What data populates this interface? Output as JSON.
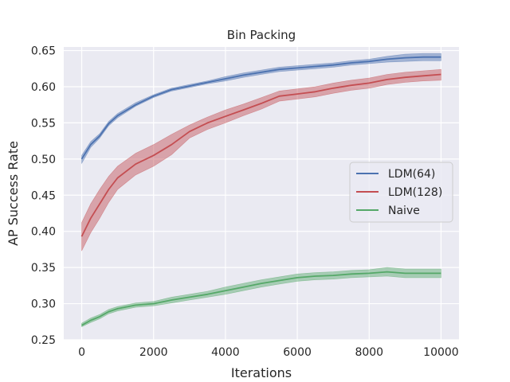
{
  "chart_data": {
    "type": "line",
    "title": "Bin Packing",
    "xlabel": "Iterations",
    "ylabel": "AP Success Rate",
    "xlim": [
      -500,
      10500
    ],
    "ylim": [
      0.25,
      0.655
    ],
    "xticks": [
      0,
      2000,
      4000,
      6000,
      8000,
      10000
    ],
    "yticks": [
      0.25,
      0.3,
      0.35,
      0.4,
      0.45,
      0.5,
      0.55,
      0.6,
      0.65
    ],
    "grid": true,
    "legend_position": "center-right",
    "x": [
      0,
      250,
      500,
      750,
      1000,
      1500,
      2000,
      2500,
      3000,
      3500,
      4000,
      4500,
      5000,
      5500,
      6000,
      6500,
      7000,
      7500,
      8000,
      8500,
      9000,
      9500,
      10000
    ],
    "series": [
      {
        "name": "LDM(64)",
        "color": "#4c72b0",
        "values": [
          0.5,
          0.52,
          0.532,
          0.549,
          0.56,
          0.575,
          0.587,
          0.596,
          0.601,
          0.606,
          0.611,
          0.616,
          0.62,
          0.624,
          0.626,
          0.628,
          0.63,
          0.633,
          0.635,
          0.638,
          0.64,
          0.641,
          0.641
        ],
        "lower": [
          0.494,
          0.516,
          0.529,
          0.546,
          0.557,
          0.573,
          0.585,
          0.594,
          0.599,
          0.604,
          0.608,
          0.613,
          0.617,
          0.621,
          0.623,
          0.625,
          0.627,
          0.63,
          0.632,
          0.634,
          0.635,
          0.636,
          0.636
        ],
        "upper": [
          0.505,
          0.524,
          0.535,
          0.552,
          0.563,
          0.578,
          0.589,
          0.598,
          0.603,
          0.608,
          0.614,
          0.619,
          0.623,
          0.627,
          0.629,
          0.631,
          0.633,
          0.636,
          0.638,
          0.642,
          0.645,
          0.646,
          0.646
        ]
      },
      {
        "name": "LDM(128)",
        "color": "#c44e52",
        "values": [
          0.393,
          0.418,
          0.438,
          0.458,
          0.474,
          0.493,
          0.505,
          0.52,
          0.538,
          0.55,
          0.559,
          0.568,
          0.577,
          0.587,
          0.59,
          0.593,
          0.598,
          0.602,
          0.605,
          0.61,
          0.613,
          0.615,
          0.617
        ],
        "lower": [
          0.373,
          0.398,
          0.418,
          0.44,
          0.458,
          0.478,
          0.49,
          0.506,
          0.529,
          0.541,
          0.55,
          0.56,
          0.569,
          0.58,
          0.583,
          0.586,
          0.591,
          0.595,
          0.598,
          0.603,
          0.606,
          0.608,
          0.609
        ],
        "upper": [
          0.412,
          0.438,
          0.458,
          0.476,
          0.49,
          0.508,
          0.52,
          0.534,
          0.547,
          0.558,
          0.568,
          0.576,
          0.585,
          0.594,
          0.597,
          0.6,
          0.605,
          0.609,
          0.612,
          0.617,
          0.62,
          0.622,
          0.624
        ]
      },
      {
        "name": "Naive",
        "color": "#55a868",
        "values": [
          0.27,
          0.277,
          0.282,
          0.289,
          0.293,
          0.298,
          0.3,
          0.305,
          0.309,
          0.313,
          0.318,
          0.323,
          0.328,
          0.332,
          0.336,
          0.338,
          0.339,
          0.341,
          0.342,
          0.344,
          0.342,
          0.342,
          0.342
        ],
        "lower": [
          0.268,
          0.274,
          0.279,
          0.286,
          0.29,
          0.295,
          0.297,
          0.301,
          0.305,
          0.309,
          0.313,
          0.318,
          0.323,
          0.327,
          0.331,
          0.333,
          0.334,
          0.336,
          0.337,
          0.338,
          0.336,
          0.336,
          0.336
        ],
        "upper": [
          0.273,
          0.28,
          0.285,
          0.292,
          0.296,
          0.301,
          0.303,
          0.309,
          0.313,
          0.317,
          0.323,
          0.328,
          0.333,
          0.337,
          0.341,
          0.343,
          0.344,
          0.346,
          0.347,
          0.35,
          0.348,
          0.348,
          0.348
        ]
      }
    ]
  }
}
